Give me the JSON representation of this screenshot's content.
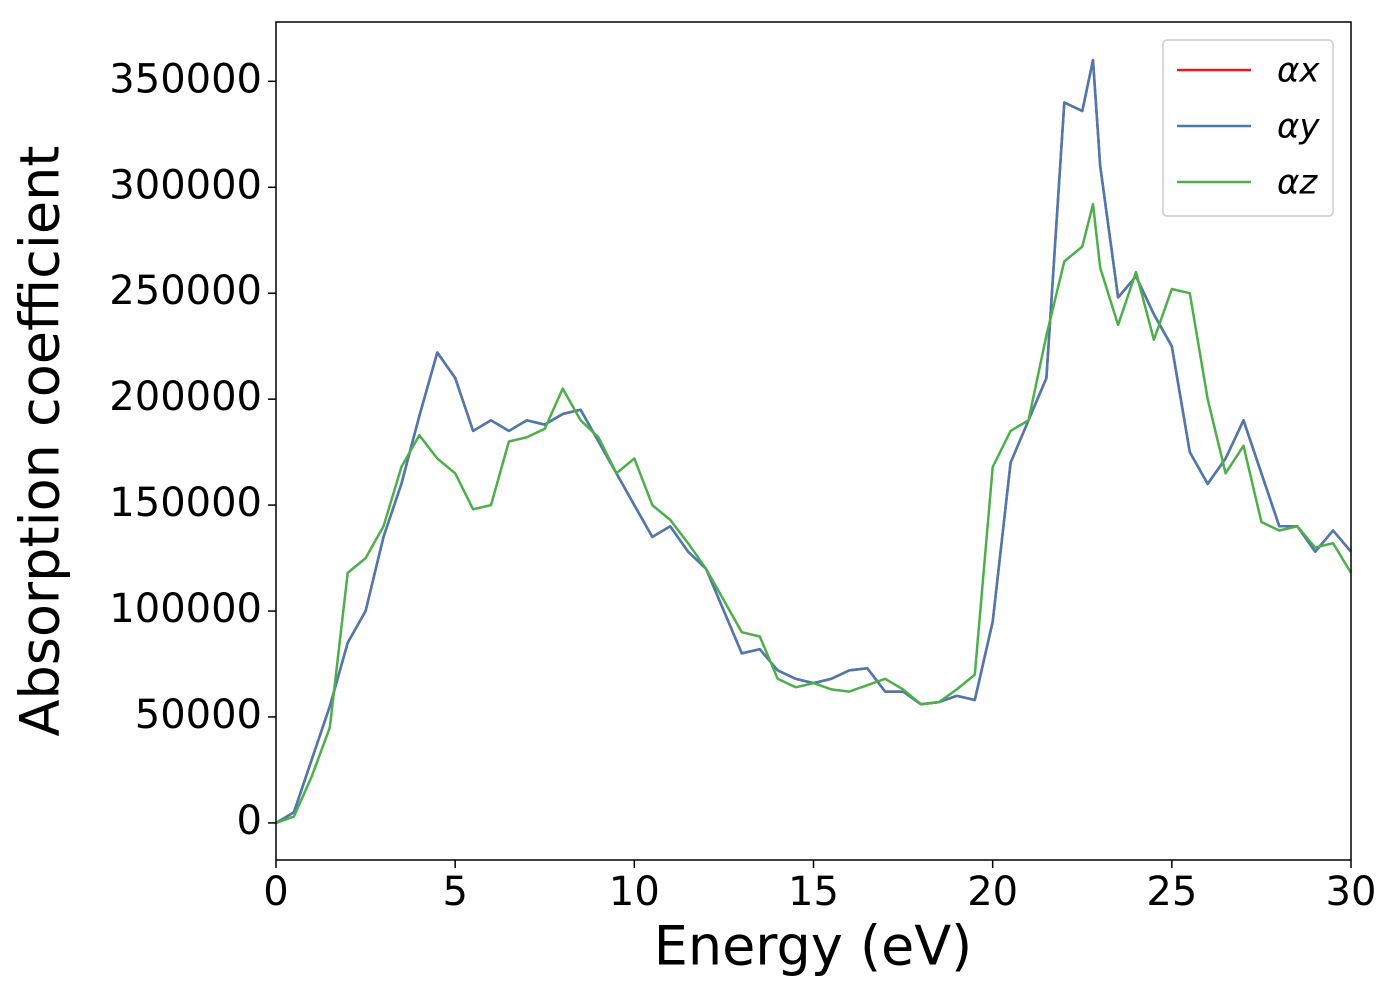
{
  "chart_data": {
    "type": "line",
    "xlabel": "Energy (eV)",
    "ylabel": "Absorption coefficient",
    "x": [
      0,
      0.5,
      1,
      1.5,
      2,
      2.5,
      3,
      3.5,
      4,
      4.5,
      5,
      5.5,
      6,
      6.5,
      7,
      7.5,
      8,
      8.5,
      9,
      9.5,
      10,
      10.5,
      11,
      11.5,
      12,
      12.5,
      13,
      13.5,
      14,
      14.5,
      15,
      15.5,
      16,
      16.5,
      17,
      17.5,
      18,
      18.5,
      19,
      19.5,
      20,
      20.5,
      21,
      21.5,
      22,
      22.5,
      22.8,
      23,
      23.5,
      24,
      24.5,
      25,
      25.5,
      26,
      26.5,
      27,
      27.5,
      28,
      28.5,
      29,
      29.5,
      30
    ],
    "series": [
      {
        "name": "αx",
        "color": "#e41a1c",
        "values": [
          0,
          5000,
          30000,
          55000,
          85000,
          100000,
          135000,
          160000,
          192000,
          222000,
          210000,
          185000,
          190000,
          185000,
          190000,
          188000,
          193000,
          195000,
          180000,
          165000,
          150000,
          135000,
          140000,
          128000,
          120000,
          100000,
          80000,
          82000,
          72000,
          68000,
          66000,
          68000,
          72000,
          73000,
          62000,
          62000,
          56000,
          57000,
          60000,
          58000,
          95000,
          170000,
          190000,
          210000,
          340000,
          336000,
          360000,
          310000,
          248000,
          258000,
          240000,
          225000,
          175000,
          160000,
          172000,
          190000,
          165000,
          140000,
          140000,
          128000,
          138000,
          128000
        ]
      },
      {
        "name": "αy",
        "color": "#4a7ab2",
        "values": [
          0,
          5000,
          30000,
          55000,
          85000,
          100000,
          135000,
          160000,
          192000,
          222000,
          210000,
          185000,
          190000,
          185000,
          190000,
          188000,
          193000,
          195000,
          180000,
          165000,
          150000,
          135000,
          140000,
          128000,
          120000,
          100000,
          80000,
          82000,
          72000,
          68000,
          66000,
          68000,
          72000,
          73000,
          62000,
          62000,
          56000,
          57000,
          60000,
          58000,
          95000,
          170000,
          190000,
          210000,
          340000,
          336000,
          360000,
          310000,
          248000,
          258000,
          240000,
          225000,
          175000,
          160000,
          172000,
          190000,
          165000,
          140000,
          140000,
          128000,
          138000,
          128000
        ]
      },
      {
        "name": "αz",
        "color": "#4daf4a",
        "values": [
          0,
          3000,
          22000,
          45000,
          118000,
          125000,
          140000,
          168000,
          183000,
          172000,
          165000,
          148000,
          150000,
          180000,
          182000,
          186000,
          205000,
          190000,
          182000,
          165000,
          172000,
          150000,
          143000,
          132000,
          120000,
          105000,
          90000,
          88000,
          68000,
          64000,
          66000,
          63000,
          62000,
          65000,
          68000,
          63000,
          56000,
          57000,
          63000,
          70000,
          168000,
          185000,
          190000,
          230000,
          265000,
          272000,
          292000,
          262000,
          235000,
          260000,
          228000,
          252000,
          250000,
          200000,
          165000,
          178000,
          142000,
          138000,
          140000,
          130000,
          132000,
          118000
        ]
      }
    ],
    "xlim": [
      0,
      30
    ],
    "xticks": [
      0,
      5,
      10,
      15,
      20,
      25,
      30
    ],
    "ylim": [
      -17500,
      378000
    ],
    "yticks": [
      0,
      50000,
      100000,
      150000,
      200000,
      250000,
      300000,
      350000
    ],
    "grid": false,
    "legend": "upper right"
  }
}
